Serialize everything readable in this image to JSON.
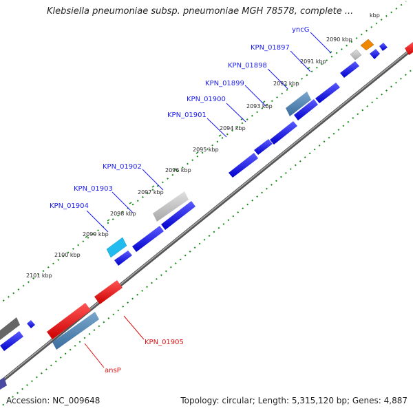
{
  "header": {
    "title": "Klebsiella pneumoniae subsp. pneumoniae MGH 78578, complete ..."
  },
  "footer": {
    "accession": "Accession: NC_009648",
    "stats": "Topology: circular; Length: 5,315,120 bp; Genes: 4,887"
  },
  "ticks": [
    {
      "label": "2090 kbp"
    },
    {
      "label": "2091 kbp"
    },
    {
      "label": "2092 kbp"
    },
    {
      "label": "2093 kbp"
    },
    {
      "label": "2094 kbp"
    },
    {
      "label": "2095 kbp"
    },
    {
      "label": "2096 kbp"
    },
    {
      "label": "2097 kbp"
    },
    {
      "label": "2098 kbp"
    },
    {
      "label": "2099 kbp"
    },
    {
      "label": "2100 kbp"
    },
    {
      "label": "2101 kbp"
    }
  ],
  "partial_tick": {
    "label": "kbp"
  },
  "gene_labels": [
    {
      "name": "yncG",
      "color": "#1a1aee"
    },
    {
      "name": "KPN_01897",
      "color": "#1a1aee"
    },
    {
      "name": "KPN_01898",
      "color": "#1a1aee"
    },
    {
      "name": "KPN_01899",
      "color": "#1a1aee"
    },
    {
      "name": "KPN_01900",
      "color": "#1a1aee"
    },
    {
      "name": "KPN_01901",
      "color": "#1a1aee"
    },
    {
      "name": "KPN_01902",
      "color": "#1a1aee"
    },
    {
      "name": "KPN_01903",
      "color": "#1a1aee"
    },
    {
      "name": "KPN_01904",
      "color": "#1a1aee"
    },
    {
      "name": "KPN_01905",
      "color": "#dd1111"
    },
    {
      "name": "ansP",
      "color": "#dd1111"
    }
  ],
  "colors": {
    "forward_gene": "#0000ee",
    "reverse_gene": "#ee0000",
    "rrna_steel": "#4a7fb0",
    "trna_cyan": "#22bbee",
    "pseudo_gray": "#b8b8b8",
    "other_orange": "#ee8800",
    "backbone": "#888888",
    "tick_green": "#118811"
  }
}
